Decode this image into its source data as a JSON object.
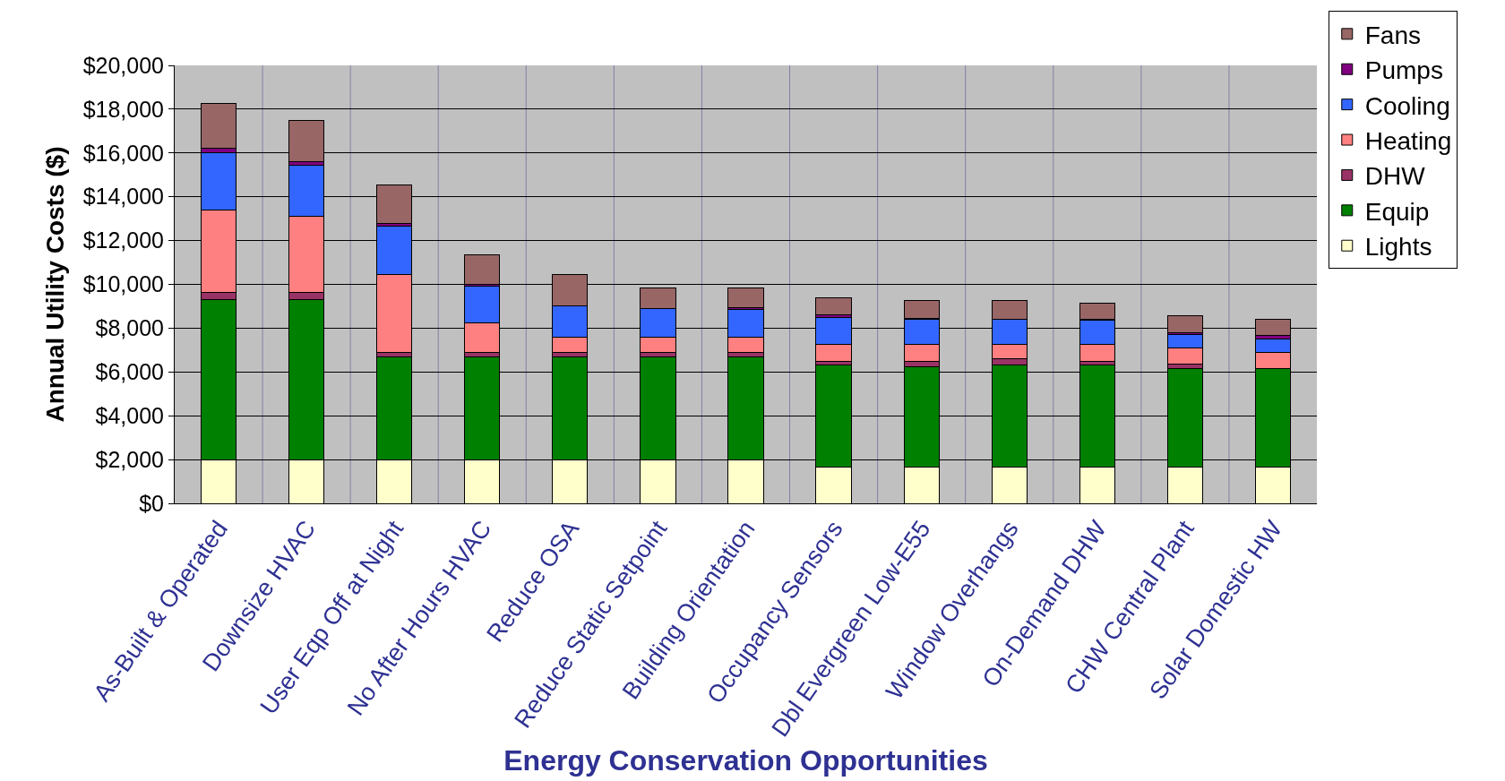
{
  "chart_data": {
    "type": "bar",
    "stacked": true,
    "xlabel": "Energy Conservation Opportunities",
    "ylabel": "Annual Utility Costs ($)",
    "categories": [
      "As-Built & Operated",
      "Downsize HVAC",
      "User Eqp Off at Night",
      "No After Hours HVAC",
      "Reduce OSA",
      "Reduce Static Setpoint",
      "Building Orientation",
      "Occupancy Sensors",
      "Dbl Evergreen Low-E55",
      "Window Overhangs",
      "On-Demand DHW",
      "CHW Central Plant",
      "Solar Domestic HW"
    ],
    "series": [
      {
        "name": "Lights",
        "color": "#ffffcc",
        "values": [
          2000,
          2000,
          2000,
          2000,
          2000,
          2000,
          2000,
          1650,
          1650,
          1650,
          1650,
          1650,
          1650
        ]
      },
      {
        "name": "Equip",
        "color": "#008000",
        "values": [
          7300,
          7300,
          4700,
          4700,
          4700,
          4700,
          4700,
          4650,
          4600,
          4650,
          4650,
          4500,
          4500
        ]
      },
      {
        "name": "DHW",
        "color": "#993366",
        "values": [
          350,
          350,
          200,
          200,
          200,
          200,
          200,
          200,
          250,
          300,
          200,
          200,
          0
        ]
      },
      {
        "name": "Heating",
        "color": "#ff8080",
        "values": [
          3750,
          3450,
          3550,
          1350,
          700,
          700,
          700,
          750,
          750,
          650,
          750,
          750,
          750
        ]
      },
      {
        "name": "Cooling",
        "color": "#3366ff",
        "values": [
          2600,
          2350,
          2200,
          1650,
          1400,
          1300,
          1250,
          1250,
          1150,
          1150,
          1100,
          600,
          600
        ]
      },
      {
        "name": "Pumps",
        "color": "#800080",
        "values": [
          200,
          150,
          150,
          100,
          0,
          0,
          100,
          100,
          50,
          0,
          50,
          100,
          150
        ]
      },
      {
        "name": "Fans",
        "color": "#996666",
        "values": [
          2050,
          1900,
          1750,
          1350,
          1450,
          950,
          900,
          800,
          800,
          850,
          750,
          750,
          750
        ]
      }
    ],
    "ylim": [
      0,
      20000
    ],
    "yticks": [
      {
        "value": 0,
        "label": "$0"
      },
      {
        "value": 2000,
        "label": "$2,000"
      },
      {
        "value": 4000,
        "label": "$4,000"
      },
      {
        "value": 6000,
        "label": "$6,000"
      },
      {
        "value": 8000,
        "label": "$8,000"
      },
      {
        "value": 10000,
        "label": "$10,000"
      },
      {
        "value": 12000,
        "label": "$12,000"
      },
      {
        "value": 14000,
        "label": "$14,000"
      },
      {
        "value": 16000,
        "label": "$16,000"
      },
      {
        "value": 18000,
        "label": "$18,000"
      },
      {
        "value": 20000,
        "label": "$20,000"
      }
    ],
    "grid": true,
    "legend": "right"
  }
}
